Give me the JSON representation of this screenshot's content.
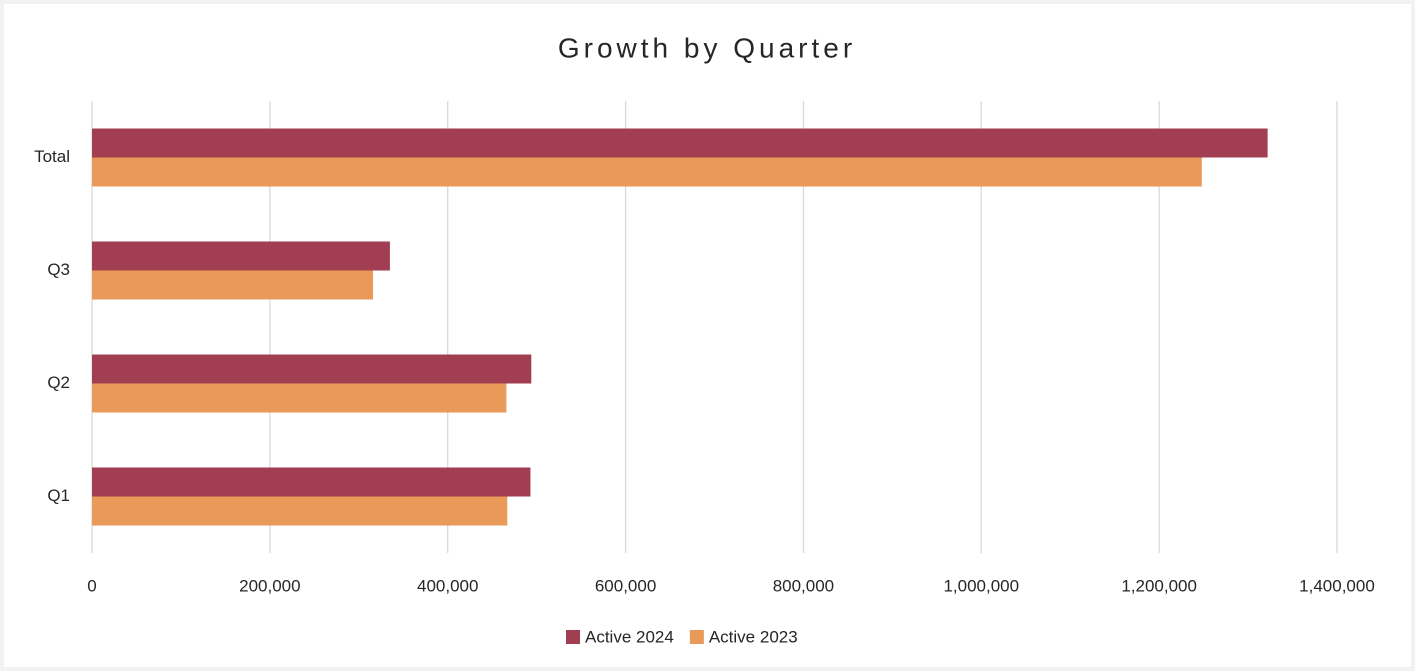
{
  "chart_data": {
    "type": "hbar",
    "title": "Growth by Quarter",
    "categories": [
      "Q1",
      "Q2",
      "Q3",
      "Total"
    ],
    "series": [
      {
        "name": "Active 2024",
        "color": "#a23e52",
        "values": [
          493000,
          494000,
          335000,
          1322000
        ]
      },
      {
        "name": "Active 2023",
        "color": "#e99a58",
        "values": [
          467000,
          466000,
          316000,
          1248000
        ]
      }
    ],
    "xlim": [
      0,
      1400000
    ],
    "xticks": [
      0,
      {
        "value": 200000,
        "label": "200,000"
      },
      {
        "value": 400000,
        "label": "400,000"
      },
      {
        "value": 600000,
        "label": "600,000"
      },
      {
        "value": 800000,
        "label": "800,000"
      },
      {
        "value": 1000000,
        "label": "1,000,000"
      },
      {
        "value": 1200000,
        "label": "1,200,000"
      },
      {
        "value": 1400000,
        "label": "1,400,000"
      }
    ],
    "grid": true,
    "legend": "bottom"
  }
}
